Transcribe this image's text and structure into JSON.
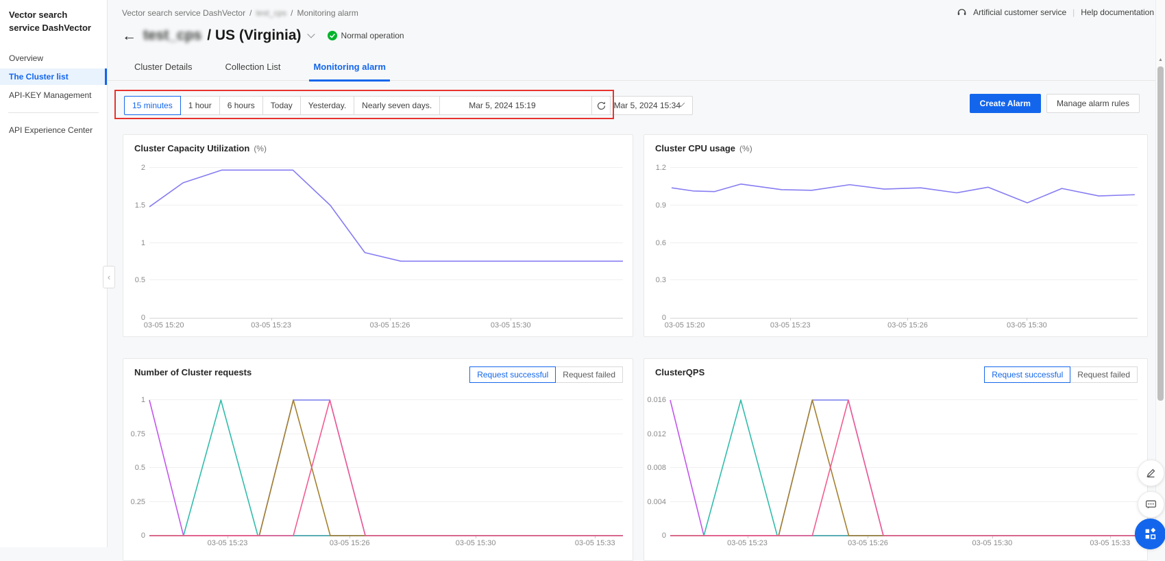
{
  "colors": {
    "primary_blue": "#1366ec",
    "highlight_red": "#e8322d",
    "status_green": "#00b42a",
    "line_purple": "#867cf2"
  },
  "sidebar": {
    "title": "Vector search service DashVector",
    "items": [
      {
        "label": "Overview",
        "active": false
      },
      {
        "label": "The Cluster list",
        "active": true
      },
      {
        "label": "API-KEY Management",
        "active": false
      },
      {
        "divider": true
      },
      {
        "label": "API Experience Center",
        "active": false
      }
    ]
  },
  "breadcrumb": {
    "items": [
      "Vector search service DashVector",
      "test_cps",
      "Monitoring alarm"
    ],
    "separator": "/"
  },
  "topbar": {
    "customer_service": "Artificial customer service",
    "separator": "|",
    "help": "Help documentation"
  },
  "cluster": {
    "name": "test_cps",
    "region_suffix": "/ US (Virginia)",
    "status": "Normal operation"
  },
  "tabs": [
    {
      "label": "Cluster Details",
      "active": false
    },
    {
      "label": "Collection List",
      "active": false
    },
    {
      "label": "Monitoring alarm",
      "active": true
    }
  ],
  "time_controls": {
    "presets": [
      {
        "label": "15 minutes",
        "active": true
      },
      {
        "label": "1 hour",
        "active": false
      },
      {
        "label": "6 hours",
        "active": false
      },
      {
        "label": "Today",
        "active": false
      },
      {
        "label": "Yesterday.",
        "active": false
      },
      {
        "label": "Nearly seven days.",
        "active": false
      }
    ],
    "range_start": "Mar 5, 2024 15:19",
    "range_separator": "-",
    "range_end": "Mar 5, 2024 15:34"
  },
  "actions": {
    "create_alarm": "Create Alarm",
    "manage_alarm_rules": "Manage alarm rules"
  },
  "icons": {
    "back": "back-arrow-icon",
    "refresh": "refresh-icon",
    "headset": "headset-icon",
    "check": "check-circle-icon",
    "edit": "pencil-icon",
    "chat": "comment-icon",
    "apps": "apps-grid-icon"
  },
  "chart_data": [
    {
      "type": "line",
      "id": "capacity",
      "title": "Cluster Capacity Utilization",
      "unit": "(%)",
      "ylim": [
        0,
        2
      ],
      "yticks": [
        "0",
        "0.5",
        "1",
        "1.5",
        "2"
      ],
      "xticks": [
        {
          "label": "03-05 15:20",
          "pos": 0.0
        },
        {
          "label": "03-05 15:23",
          "pos": 0.257
        },
        {
          "label": "03-05 15:26",
          "pos": 0.508
        },
        {
          "label": "03-05 15:30",
          "pos": 0.763
        }
      ],
      "series": [
        {
          "name": "capacity-utilization",
          "color": "#867cf2",
          "points": [
            [
              0,
              1.48
            ],
            [
              0.071,
              1.8
            ],
            [
              0.153,
              1.97
            ],
            [
              0.303,
              1.97
            ],
            [
              0.382,
              1.5
            ],
            [
              0.455,
              0.87
            ],
            [
              0.531,
              0.755
            ],
            [
              1,
              0.755
            ]
          ]
        }
      ]
    },
    {
      "type": "line",
      "id": "cpu",
      "title": "Cluster CPU usage",
      "unit": "(%)",
      "ylim": [
        0,
        1.2
      ],
      "yticks": [
        "0",
        "0.3",
        "0.6",
        "0.9",
        "1.2"
      ],
      "xticks": [
        {
          "label": "03-05 15:20",
          "pos": 0.0
        },
        {
          "label": "03-05 15:23",
          "pos": 0.257
        },
        {
          "label": "03-05 15:26",
          "pos": 0.508
        },
        {
          "label": "03-05 15:30",
          "pos": 0.763
        }
      ],
      "series": [
        {
          "name": "cpu-usage",
          "color": "#867cf2",
          "points": [
            [
              0.003,
              1.04
            ],
            [
              0.049,
              1.015
            ],
            [
              0.095,
              1.01
            ],
            [
              0.151,
              1.07
            ],
            [
              0.239,
              1.025
            ],
            [
              0.303,
              1.02
            ],
            [
              0.384,
              1.065
            ],
            [
              0.458,
              1.03
            ],
            [
              0.536,
              1.04
            ],
            [
              0.613,
              1.0
            ],
            [
              0.68,
              1.045
            ],
            [
              0.764,
              0.92
            ],
            [
              0.838,
              1.035
            ],
            [
              0.917,
              0.975
            ],
            [
              0.994,
              0.985
            ]
          ]
        }
      ]
    },
    {
      "type": "line",
      "id": "requests",
      "title": "Number of Cluster requests",
      "unit": "",
      "toggles": [
        {
          "label": "Request successful",
          "active": true
        },
        {
          "label": "Request failed",
          "active": false
        }
      ],
      "ylim": [
        0,
        1
      ],
      "yticks": [
        "0",
        "0.25",
        "0.5",
        "0.75",
        "1"
      ],
      "xticks": [
        {
          "label": "03-05 15:23",
          "pos": 0.165
        },
        {
          "label": "03-05 15:26",
          "pos": 0.423
        },
        {
          "label": "03-05 15:30",
          "pos": 0.689
        },
        {
          "label": "03-05 15:33",
          "pos": 0.941
        }
      ],
      "series": [
        {
          "name": "requests-red",
          "color": "#e25f5f",
          "points": [
            [
              0,
              0
            ],
            [
              1,
              0
            ]
          ]
        },
        {
          "name": "requests-blue",
          "color": "#767df2",
          "points": [
            [
              0,
              0
            ],
            [
              0.232,
              0
            ],
            [
              0.304,
              1
            ],
            [
              0.381,
              1
            ],
            [
              0.456,
              0
            ],
            [
              1,
              0
            ]
          ]
        },
        {
          "name": "requests-magenta",
          "color": "#c355ee",
          "points": [
            [
              0,
              1
            ],
            [
              0.072,
              0
            ],
            [
              1,
              0
            ]
          ]
        },
        {
          "name": "requests-teal",
          "color": "#30bcab",
          "points": [
            [
              0,
              0
            ],
            [
              0.072,
              0
            ],
            [
              0.151,
              1
            ],
            [
              0.229,
              0
            ],
            [
              1,
              0
            ]
          ]
        },
        {
          "name": "requests-olive",
          "color": "#a5802e",
          "points": [
            [
              0,
              0
            ],
            [
              0.232,
              0
            ],
            [
              0.304,
              1
            ],
            [
              0.382,
              0
            ],
            [
              1,
              0
            ]
          ]
        },
        {
          "name": "requests-pink",
          "color": "#f25b92",
          "points": [
            [
              0,
              0
            ],
            [
              0.304,
              0
            ],
            [
              0.381,
              1
            ],
            [
              0.456,
              0
            ],
            [
              1,
              0
            ]
          ]
        }
      ]
    },
    {
      "type": "line",
      "id": "qps",
      "title": "ClusterQPS",
      "unit": "",
      "toggles": [
        {
          "label": "Request successful",
          "active": true
        },
        {
          "label": "Request failed",
          "active": false
        }
      ],
      "ylim": [
        0,
        0.016
      ],
      "yticks": [
        "0",
        "0.004",
        "0.008",
        "0.012",
        "0.016"
      ],
      "xticks": [
        {
          "label": "03-05 15:23",
          "pos": 0.165
        },
        {
          "label": "03-05 15:26",
          "pos": 0.423
        },
        {
          "label": "03-05 15:30",
          "pos": 0.689
        },
        {
          "label": "03-05 15:33",
          "pos": 0.941
        }
      ],
      "series": [
        {
          "name": "qps-red",
          "color": "#e25f5f",
          "points": [
            [
              0,
              0
            ],
            [
              1,
              0
            ]
          ]
        },
        {
          "name": "qps-blue",
          "color": "#767df2",
          "points": [
            [
              0,
              0
            ],
            [
              0.232,
              0
            ],
            [
              0.304,
              0.016
            ],
            [
              0.381,
              0.016
            ],
            [
              0.456,
              0
            ],
            [
              1,
              0
            ]
          ]
        },
        {
          "name": "qps-magenta",
          "color": "#c355ee",
          "points": [
            [
              0,
              0.016
            ],
            [
              0.072,
              0
            ],
            [
              1,
              0
            ]
          ]
        },
        {
          "name": "qps-teal",
          "color": "#30bcab",
          "points": [
            [
              0,
              0
            ],
            [
              0.072,
              0
            ],
            [
              0.151,
              0.016
            ],
            [
              0.229,
              0
            ],
            [
              1,
              0
            ]
          ]
        },
        {
          "name": "qps-olive",
          "color": "#a5802e",
          "points": [
            [
              0,
              0
            ],
            [
              0.232,
              0
            ],
            [
              0.304,
              0.016
            ],
            [
              0.382,
              0
            ],
            [
              1,
              0
            ]
          ]
        },
        {
          "name": "qps-pink",
          "color": "#f25b92",
          "points": [
            [
              0,
              0
            ],
            [
              0.304,
              0
            ],
            [
              0.381,
              0.016
            ],
            [
              0.456,
              0
            ],
            [
              1,
              0
            ]
          ]
        }
      ]
    }
  ]
}
